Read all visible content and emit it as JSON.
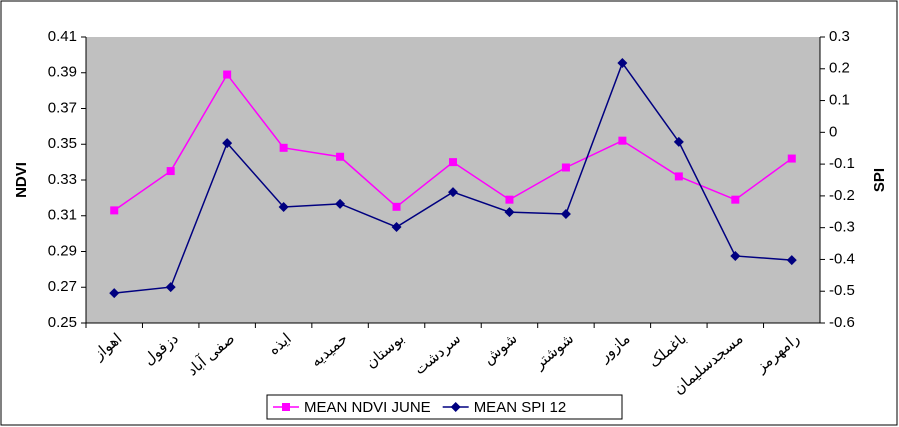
{
  "chart_data": {
    "type": "line",
    "categories": [
      "اهواز",
      "دزفول",
      "صفی آباد",
      "ایذه",
      "حمیدیه",
      "بوستان",
      "سردشت",
      "شوش",
      "شوشتر",
      "مازور",
      "باغملک",
      "مسجدسلیمان",
      "رامهرمز"
    ],
    "y_label": "NDVI",
    "y2_label": "SPI",
    "ylim": [
      0.25,
      0.41
    ],
    "yticks": [
      0.25,
      0.27,
      0.29,
      0.31,
      0.33,
      0.35,
      0.37,
      0.39,
      0.41
    ],
    "y2lim": [
      -0.6,
      0.3
    ],
    "y2ticks": [
      -0.6,
      -0.5,
      -0.4,
      -0.3,
      -0.2,
      -0.1,
      0,
      0.1,
      0.2,
      0.3
    ],
    "series": [
      {
        "name": "MEAN NDVI JUNE",
        "color": "#ff00ff",
        "marker": "square",
        "values": [
          0.313,
          0.335,
          0.389,
          0.348,
          0.343,
          0.315,
          0.34,
          0.319,
          0.337,
          0.352,
          0.332,
          0.319,
          0.342
        ]
      },
      {
        "name": "MEAN SPI 12",
        "color": "#000080",
        "marker": "diamond",
        "axis": "y2",
        "values": [
          -0.506,
          -0.487,
          -0.034,
          -0.235,
          -0.225,
          -0.298,
          -0.188,
          -0.251,
          -0.257,
          0.218,
          -0.03,
          -0.389,
          -0.402
        ]
      }
    ],
    "plot_background": "#c0c0c0"
  }
}
